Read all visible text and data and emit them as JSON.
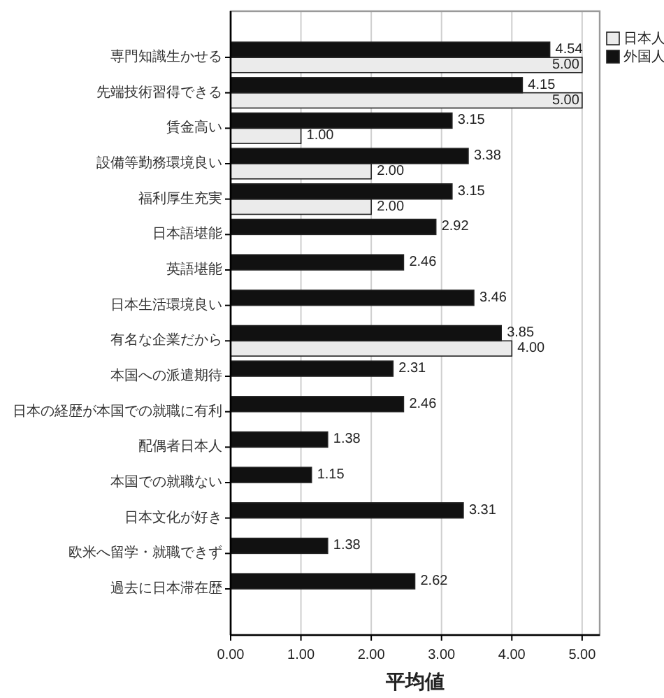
{
  "chart_data": {
    "type": "bar",
    "orientation": "horizontal",
    "categories": [
      "専門知識生かせる",
      "先端技術習得できる",
      "賃金高い",
      "設備等勤務環境良い",
      "福利厚生充実",
      "日本語堪能",
      "英語堪能",
      "日本生活環境良い",
      "有名な企業だから",
      "本国への派遣期待",
      "日本の経歴が本国での就職に有利",
      "配偶者日本人",
      "本国での就職ない",
      "日本文化が好き",
      "欧米へ留学・就職できず",
      "過去に日本滞在歴"
    ],
    "series": [
      {
        "name": "日本人",
        "color": "#ebebeb",
        "values": [
          5,
          5,
          1,
          2,
          2,
          null,
          null,
          null,
          4,
          null,
          null,
          null,
          null,
          null,
          null,
          null
        ],
        "value_labels": [
          "5.00",
          "5.00",
          "1.00",
          "2.00",
          "2.00",
          null,
          null,
          null,
          "4.00",
          null,
          null,
          null,
          null,
          null,
          null,
          null
        ]
      },
      {
        "name": "外国人",
        "color": "#111111",
        "values": [
          4.54,
          4.15,
          3.15,
          3.38,
          3.15,
          2.92,
          2.46,
          3.46,
          3.85,
          2.31,
          2.46,
          1.38,
          1.15,
          3.31,
          1.38,
          2.62
        ],
        "value_labels": [
          "4.54",
          "4.15",
          "3.15",
          "3.38",
          "3.15",
          "2.92",
          "2.46",
          "3.46",
          "3.85",
          "2.31",
          "2.46",
          "1.38",
          "1.15",
          "3.31",
          "1.38",
          "2.62"
        ]
      }
    ],
    "xlabel": "平均値",
    "xlim": [
      0,
      5.25
    ],
    "xticks": [
      {
        "value": 0,
        "label": "0.00"
      },
      {
        "value": 1,
        "label": "1.00"
      },
      {
        "value": 2,
        "label": "2.00"
      },
      {
        "value": 3,
        "label": "3.00"
      },
      {
        "value": 4,
        "label": "4.00"
      },
      {
        "value": 5,
        "label": "5.00"
      }
    ],
    "grid": "x",
    "legend": "top right"
  }
}
